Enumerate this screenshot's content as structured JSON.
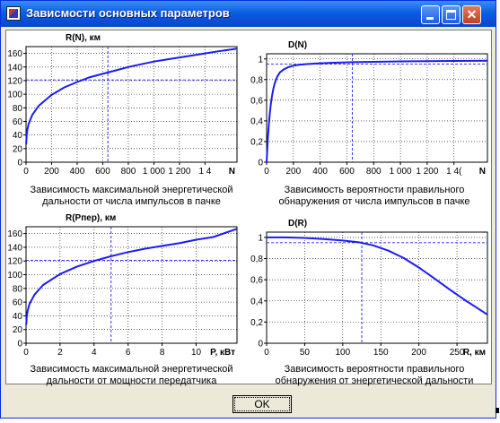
{
  "window": {
    "title": "Зависмости основных параметров",
    "min_label": "",
    "max_label": "",
    "close_label": "✕"
  },
  "ok_label": "OK",
  "chart_data": [
    {
      "type": "line",
      "title": "R(N), км",
      "caption": "Зависимость максимальной энергетической дальности от числа импульсов в пачке",
      "xlabel": "N",
      "xlim": [
        0,
        1650
      ],
      "ylim": [
        0,
        170
      ],
      "xticks": [
        0,
        200,
        400,
        600,
        800,
        1000,
        1200,
        1400
      ],
      "xtick_labels": [
        "0",
        "200",
        "400",
        "600",
        "800",
        "1 000",
        "1 200",
        "1 4"
      ],
      "yticks": [
        0,
        20,
        40,
        60,
        80,
        100,
        120,
        140,
        160
      ],
      "ytick_labels": [
        "0",
        "20",
        "40",
        "60",
        "80",
        "100",
        "120",
        "140",
        "160"
      ],
      "grid": true,
      "color": "#1c1cf0",
      "marker": {
        "x": 640,
        "y": 121
      },
      "series": [
        {
          "x": [
            1,
            5,
            10,
            20,
            50,
            100,
            200,
            300,
            400,
            500,
            600,
            700,
            800,
            900,
            1000,
            1100,
            1200,
            1300,
            1400,
            1500,
            1650
          ],
          "y": [
            26,
            39,
            47,
            56,
            70,
            83,
            99,
            110,
            118,
            125,
            130,
            135,
            140,
            144,
            148,
            151,
            154,
            157,
            160,
            163,
            167
          ]
        }
      ]
    },
    {
      "type": "line",
      "title": "D(N)",
      "caption": "Зависимость вероятности правильного обнаружения от числа импульсов в пачке",
      "xlabel": "N",
      "xlim": [
        0,
        1650
      ],
      "ylim": [
        0,
        1.05
      ],
      "xticks": [
        0,
        200,
        400,
        600,
        800,
        1000,
        1200,
        1400
      ],
      "xtick_labels": [
        "0",
        "200",
        "400",
        "600",
        "800",
        "1 000",
        "1 200",
        "1 4("
      ],
      "yticks": [
        0,
        0.2,
        0.4,
        0.6,
        0.8,
        1.0
      ],
      "ytick_labels": [
        "0",
        "0,2",
        "0,4",
        "0,6",
        "0,8",
        "1"
      ],
      "grid": true,
      "color": "#1c1cf0",
      "marker": {
        "x": 640,
        "y": 0.95
      },
      "series": [
        {
          "x": [
            0,
            10,
            20,
            30,
            40,
            50,
            60,
            80,
            100,
            130,
            160,
            200,
            250,
            300,
            400,
            500,
            640,
            800,
            1000,
            1200,
            1400,
            1650
          ],
          "y": [
            0,
            0.25,
            0.42,
            0.55,
            0.64,
            0.71,
            0.76,
            0.83,
            0.87,
            0.9,
            0.92,
            0.935,
            0.945,
            0.95,
            0.958,
            0.963,
            0.968,
            0.972,
            0.976,
            0.979,
            0.981,
            0.983
          ]
        }
      ]
    },
    {
      "type": "line",
      "title": "R(Pпер), км",
      "caption": "Зависимость максимальной энергетической дальности от мощности передатчика",
      "xlabel": "P, кВт",
      "xlim": [
        0,
        12.4
      ],
      "ylim": [
        0,
        170
      ],
      "xticks": [
        0,
        2,
        4,
        6,
        8,
        10
      ],
      "xtick_labels": [
        "0",
        "2",
        "4",
        "6",
        "8",
        "10"
      ],
      "yticks": [
        0,
        20,
        40,
        60,
        80,
        100,
        120,
        140,
        160
      ],
      "ytick_labels": [
        "0",
        "20",
        "40",
        "60",
        "80",
        "100",
        "120",
        "140",
        "160"
      ],
      "grid": true,
      "color": "#1c1cf0",
      "marker": {
        "x": 5,
        "y": 121
      },
      "series": [
        {
          "x": [
            0.01,
            0.05,
            0.1,
            0.2,
            0.5,
            1,
            2,
            3,
            4,
            5,
            6,
            7,
            8,
            9,
            10,
            11,
            12.4
          ],
          "y": [
            27,
            40,
            48,
            57,
            71,
            85,
            101,
            112,
            120,
            127,
            133,
            138,
            142,
            146,
            151,
            155,
            167
          ]
        }
      ]
    },
    {
      "type": "line",
      "title": "D(R)",
      "caption": "Зависимость вероятности правильного обнаружения от энергетической дальности",
      "xlabel": "R, км",
      "xlim": [
        0,
        290
      ],
      "ylim": [
        0,
        1.05
      ],
      "xticks": [
        0,
        50,
        100,
        150,
        200,
        250
      ],
      "xtick_labels": [
        "0",
        "50",
        "100",
        "150",
        "200",
        "250"
      ],
      "yticks": [
        0,
        0.2,
        0.4,
        0.6,
        0.8,
        1.0
      ],
      "ytick_labels": [
        "0",
        "0,2",
        "0,4",
        "0,6",
        "0,8",
        "1"
      ],
      "grid": true,
      "color": "#1c1cf0",
      "marker": {
        "x": 125,
        "y": 0.95
      },
      "series": [
        {
          "x": [
            0,
            25,
            50,
            75,
            100,
            120,
            140,
            160,
            180,
            200,
            220,
            240,
            260,
            275,
            290
          ],
          "y": [
            1.0,
            1.0,
            0.995,
            0.985,
            0.97,
            0.955,
            0.925,
            0.875,
            0.805,
            0.715,
            0.615,
            0.51,
            0.41,
            0.34,
            0.27
          ]
        }
      ]
    }
  ]
}
